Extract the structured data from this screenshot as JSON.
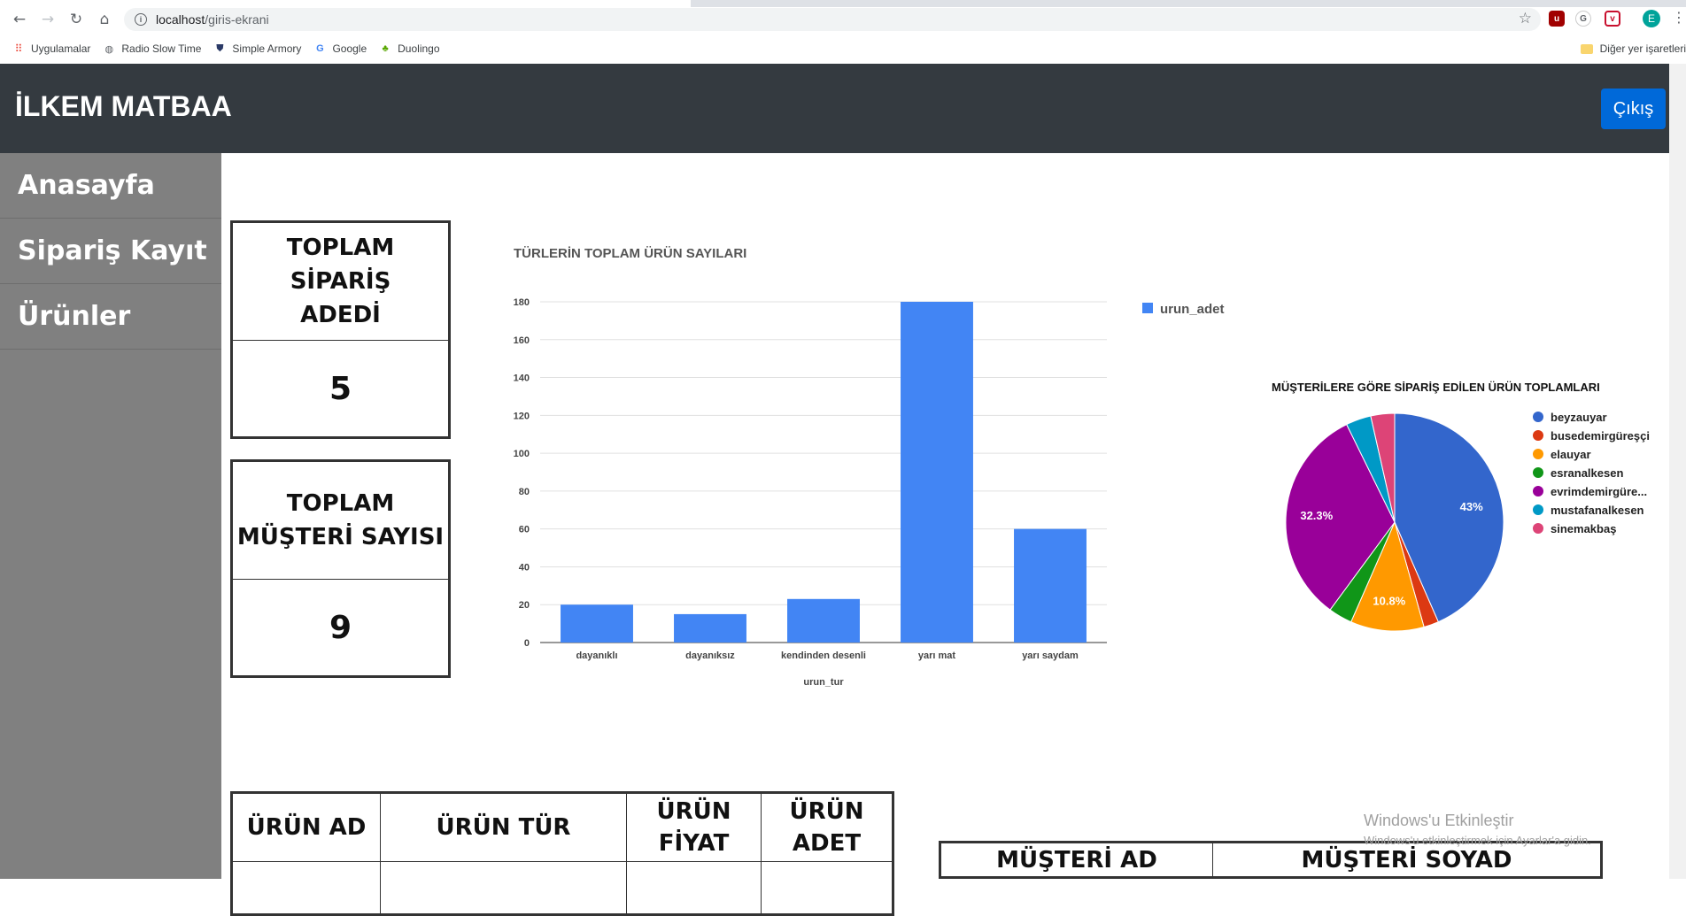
{
  "browser": {
    "url_host": "localhost",
    "url_path": "/giris-ekrani",
    "profile_initial": "E",
    "bookmarks": [
      {
        "label": "Uygulamalar",
        "icon": "apps-grid-icon"
      },
      {
        "label": "Radio Slow Time",
        "icon": "globe-icon"
      },
      {
        "label": "Simple Armory",
        "icon": "shield-icon"
      },
      {
        "label": "Google",
        "icon": "google-icon"
      },
      {
        "label": "Duolingo",
        "icon": "owl-icon"
      }
    ],
    "other_bookmarks": "Diğer yer işaretleri"
  },
  "header": {
    "brand": "İLKEM MATBAA",
    "logout_label": "Çıkış"
  },
  "sidebar": {
    "items": [
      {
        "label": "Anasayfa"
      },
      {
        "label": "Sipariş Kayıt"
      },
      {
        "label": "Ürünler"
      }
    ]
  },
  "stats": {
    "orders": {
      "title_line1": "TOPLAM SİPARİŞ",
      "title_line2": "ADEDİ",
      "value": "5"
    },
    "customers": {
      "title_line1": "TOPLAM",
      "title_line2": "MÜŞTERİ SAYISI",
      "value": "9"
    }
  },
  "chart_data": [
    {
      "type": "bar",
      "title": "TÜRLERİN TOPLAM ÜRÜN SAYILARI",
      "xlabel": "urun_tur",
      "ylabel": "",
      "categories": [
        "dayanıklı",
        "dayanıksız",
        "kendinden desenli",
        "yarı mat",
        "yarı saydam"
      ],
      "series": [
        {
          "name": "urun_adet",
          "values": [
            20,
            15,
            23,
            180,
            60
          ],
          "color": "#4285f4"
        }
      ],
      "ylim": [
        0,
        180
      ],
      "yticks": [
        0,
        20,
        40,
        60,
        80,
        100,
        120,
        140,
        160,
        180
      ],
      "grid": true,
      "legend": "right"
    },
    {
      "type": "pie",
      "title": "MÜŞTERİLERE GÖRE SİPARİŞ EDİLEN ÜRÜN TOPLAMLARI",
      "legend": "right",
      "slices": [
        {
          "label": "beyzauyar",
          "value": 43,
          "color": "#3366cc",
          "show_pct": "43%"
        },
        {
          "label": "busedemirgüreşçi",
          "value": 2.2,
          "color": "#dc3912",
          "show_pct": ""
        },
        {
          "label": "elauyar",
          "value": 10.8,
          "color": "#ff9900",
          "show_pct": "10.8%"
        },
        {
          "label": "esranalkesen",
          "value": 3.5,
          "color": "#109618",
          "show_pct": ""
        },
        {
          "label": "evrimdemirgüre...",
          "value": 32.3,
          "color": "#990099",
          "show_pct": "32.3%"
        },
        {
          "label": "mustafanalkesen",
          "value": 3.7,
          "color": "#0099c6",
          "show_pct": ""
        },
        {
          "label": "sinemakbaş",
          "value": 3.5,
          "color": "#dd4477",
          "show_pct": ""
        }
      ]
    }
  ],
  "tables": {
    "urun": {
      "headers": [
        [
          "ÜRÜN AD"
        ],
        [
          "ÜRÜN TÜR"
        ],
        [
          "ÜRÜN",
          "FİYAT"
        ],
        [
          "ÜRÜN",
          "ADET"
        ]
      ]
    },
    "musteri": {
      "headers": [
        "MÜŞTERİ AD",
        "MÜŞTERİ SOYAD"
      ]
    }
  },
  "watermark": {
    "title": "Windows'u Etkinleştir",
    "subtitle": "Windows'u etkinleştirmek için Ayarlar'a gidin."
  }
}
